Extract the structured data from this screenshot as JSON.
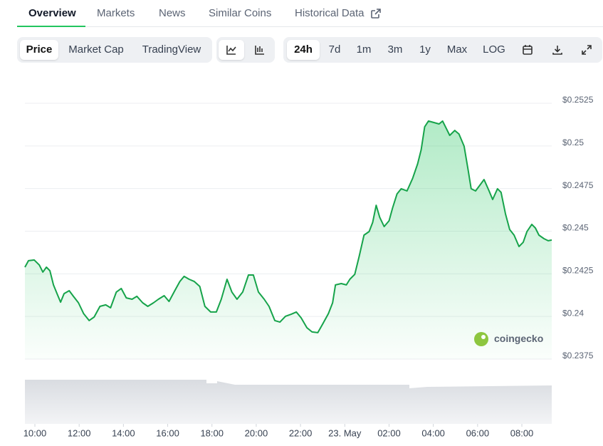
{
  "tabs": [
    "Overview",
    "Markets",
    "News",
    "Similar Coins",
    "Historical Data"
  ],
  "chart_modes": [
    "Price",
    "Market Cap",
    "TradingView"
  ],
  "ranges": [
    "24h",
    "7d",
    "1m",
    "3m",
    "1y",
    "Max",
    "LOG"
  ],
  "watermark": "coingecko",
  "chart_data": {
    "type": "area",
    "color": "#16a34a",
    "grid": true,
    "xlim": [
      9.55,
      33.35
    ],
    "ylim": [
      0.2375,
      0.2525
    ],
    "yticks": [
      {
        "value": 0.2375,
        "label": "$0.2375"
      },
      {
        "value": 0.24,
        "label": "$0.24"
      },
      {
        "value": 0.2425,
        "label": "$0.2425"
      },
      {
        "value": 0.245,
        "label": "$0.245"
      },
      {
        "value": 0.2475,
        "label": "$0.2475"
      },
      {
        "value": 0.25,
        "label": "$0.25"
      },
      {
        "value": 0.2525,
        "label": "$0.2525"
      }
    ],
    "xticks": [
      {
        "value": 10,
        "label": "10:00"
      },
      {
        "value": 12,
        "label": "12:00"
      },
      {
        "value": 14,
        "label": "14:00"
      },
      {
        "value": 16,
        "label": "16:00"
      },
      {
        "value": 18,
        "label": "18:00"
      },
      {
        "value": 20,
        "label": "20:00"
      },
      {
        "value": 22,
        "label": "22:00"
      },
      {
        "value": 24,
        "label": "23. May"
      },
      {
        "value": 26,
        "label": "02:00"
      },
      {
        "value": 28,
        "label": "04:00"
      },
      {
        "value": 30,
        "label": "06:00"
      },
      {
        "value": 32,
        "label": "08:00"
      }
    ],
    "x": [
      9.55,
      9.71,
      9.97,
      10.2,
      10.36,
      10.52,
      10.68,
      10.84,
      11.0,
      11.16,
      11.32,
      11.55,
      11.74,
      11.97,
      12.2,
      12.45,
      12.68,
      12.94,
      13.2,
      13.42,
      13.68,
      13.9,
      14.13,
      14.39,
      14.61,
      14.87,
      15.1,
      15.36,
      15.58,
      15.84,
      16.06,
      16.32,
      16.55,
      16.74,
      16.97,
      17.2,
      17.45,
      17.68,
      17.94,
      18.2,
      18.42,
      18.68,
      18.9,
      19.13,
      19.39,
      19.65,
      19.87,
      20.1,
      20.36,
      20.58,
      20.84,
      21.07,
      21.32,
      21.58,
      21.81,
      22.03,
      22.29,
      22.52,
      22.78,
      23.0,
      23.26,
      23.45,
      23.58,
      23.84,
      24.07,
      24.23,
      24.45,
      24.65,
      24.87,
      25.1,
      25.26,
      25.42,
      25.58,
      25.78,
      26.0,
      26.16,
      26.36,
      26.55,
      26.81,
      27.07,
      27.29,
      27.45,
      27.61,
      27.78,
      28.03,
      28.26,
      28.42,
      28.58,
      28.74,
      28.97,
      29.16,
      29.39,
      29.58,
      29.71,
      29.91,
      30.1,
      30.29,
      30.52,
      30.68,
      30.9,
      31.06,
      31.26,
      31.45,
      31.65,
      31.87,
      32.06,
      32.23,
      32.45,
      32.61,
      32.77,
      33.0,
      33.19,
      33.35
    ],
    "values": [
      0.24289,
      0.24327,
      0.24331,
      0.24302,
      0.2426,
      0.24289,
      0.24268,
      0.24185,
      0.24134,
      0.24084,
      0.24134,
      0.24151,
      0.24118,
      0.2408,
      0.24017,
      0.23976,
      0.23997,
      0.24059,
      0.24068,
      0.24051,
      0.24143,
      0.24164,
      0.24109,
      0.24101,
      0.24118,
      0.2408,
      0.24059,
      0.2408,
      0.24101,
      0.24122,
      0.24088,
      0.24151,
      0.24205,
      0.24235,
      0.24218,
      0.24205,
      0.24176,
      0.24059,
      0.24026,
      0.24026,
      0.24101,
      0.24218,
      0.24143,
      0.24101,
      0.24143,
      0.24243,
      0.24243,
      0.24143,
      0.24101,
      0.24059,
      0.23976,
      0.23967,
      0.24001,
      0.24013,
      0.24026,
      0.23992,
      0.23934,
      0.23909,
      0.23905,
      0.23955,
      0.24017,
      0.2408,
      0.24185,
      0.24193,
      0.24185,
      0.24218,
      0.24247,
      0.24352,
      0.24477,
      0.24498,
      0.24552,
      0.24652,
      0.24581,
      0.24527,
      0.24561,
      0.24636,
      0.24719,
      0.24749,
      0.24736,
      0.24811,
      0.24895,
      0.24978,
      0.25112,
      0.25146,
      0.25137,
      0.25129,
      0.25146,
      0.25104,
      0.25062,
      0.25091,
      0.2507,
      0.24999,
      0.24853,
      0.24749,
      0.24736,
      0.24769,
      0.24803,
      0.24736,
      0.24686,
      0.24749,
      0.24728,
      0.24602,
      0.2451,
      0.24477,
      0.2441,
      0.24435,
      0.24498,
      0.2454,
      0.24519,
      0.24477,
      0.24456,
      0.24444,
      0.24448
    ]
  }
}
